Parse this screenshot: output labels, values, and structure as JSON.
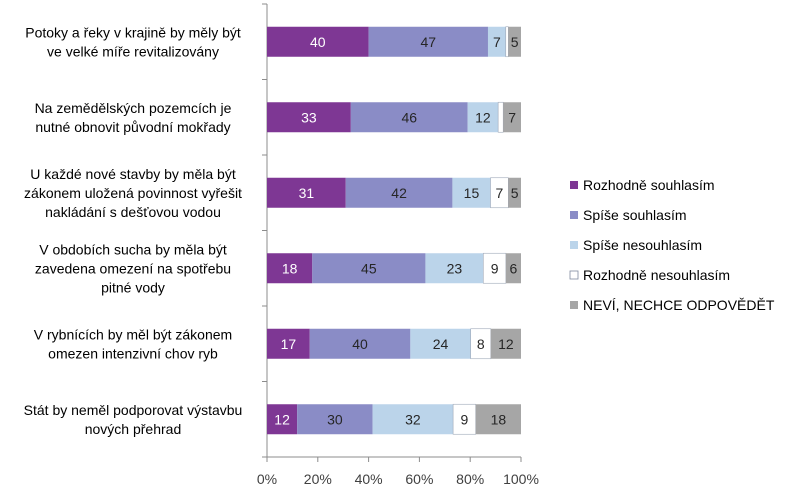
{
  "chart_data": {
    "type": "bar",
    "orientation": "horizontal",
    "stacked": "percent",
    "categories": [
      [
        "Potoky a řeky v krajině by měly být",
        "ve velké míře revitalizovány"
      ],
      [
        "Na zemědělských pozemcích je",
        "nutné obnovit původní mokřady"
      ],
      [
        "U každé nové stavby by měla být",
        "zákonem uložená povinnost vyřešit",
        "nakládání s dešťovou vodou"
      ],
      [
        "V obdobích sucha by měla být",
        "zavedena omezení na spotřebu",
        "pitné vody"
      ],
      [
        "V rybnících by měl být zákonem",
        "omezen intenzivní chov ryb"
      ],
      [
        "Stát by neměl podporovat výstavbu",
        "nových přehrad"
      ]
    ],
    "series": [
      {
        "name": "Rozhodně souhlasím",
        "color": "#7E3794",
        "values": [
          40,
          33,
          31,
          18,
          17,
          12
        ],
        "labels": [
          "40",
          "33",
          "31",
          "18",
          "17",
          "12"
        ]
      },
      {
        "name": "Spíše souhlasím",
        "color": "#8A8CC6",
        "values": [
          47,
          46,
          42,
          45,
          40,
          30
        ],
        "labels": [
          "47",
          "46",
          "42",
          "45",
          "40",
          "30"
        ]
      },
      {
        "name": "Spíše nesouhlasím",
        "color": "#BBD4EA",
        "values": [
          7,
          12,
          15,
          23,
          24,
          32
        ],
        "labels": [
          "7",
          "12",
          "15",
          "23",
          "24",
          "32"
        ]
      },
      {
        "name": "Rozhodně nesouhlasím",
        "color": "#FFFFFF",
        "values": [
          1,
          2,
          7,
          9,
          8,
          9
        ],
        "labels": [
          "",
          "",
          "7",
          "9",
          "8",
          "9"
        ]
      },
      {
        "name": "NEVÍ, NECHCE ODPOVĚDĚT",
        "color": "#A6A6A6",
        "values": [
          5,
          7,
          5,
          6,
          12,
          18
        ],
        "labels": [
          "5",
          "7",
          "5",
          "6",
          "12",
          "18"
        ]
      }
    ],
    "xlim": [
      0,
      100
    ],
    "xticks": [
      "0%",
      "20%",
      "40%",
      "60%",
      "80%",
      "100%"
    ],
    "title": "",
    "xlabel": "",
    "ylabel": "",
    "legend": "right",
    "grid": false
  }
}
